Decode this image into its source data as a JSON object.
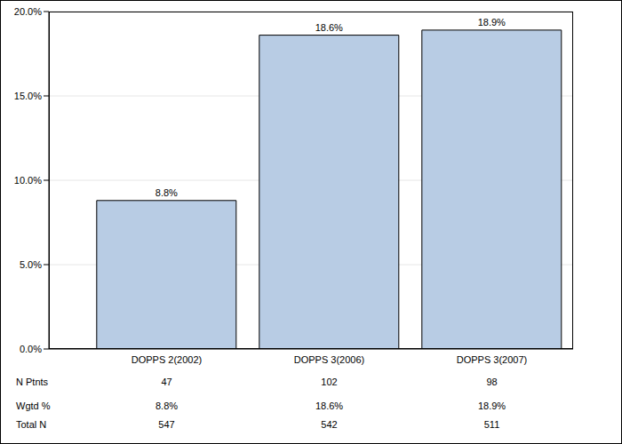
{
  "chart_data": {
    "type": "bar",
    "categories": [
      "DOPPS 2(2002)",
      "DOPPS 3(2006)",
      "DOPPS 3(2007)"
    ],
    "values": [
      8.8,
      18.6,
      18.9
    ],
    "value_labels": [
      "8.8%",
      "18.6%",
      "18.9%"
    ],
    "data_labels": true,
    "color": "#b8cce4",
    "ylim": [
      0,
      20
    ],
    "yticks": [
      {
        "value": 0,
        "label": "0.0%"
      },
      {
        "value": 5,
        "label": "5.0%"
      },
      {
        "value": 10,
        "label": "10.0%"
      },
      {
        "value": 15,
        "label": "15.0%"
      },
      {
        "value": 20,
        "label": "20.0%"
      }
    ],
    "grid": true,
    "table": {
      "rows": [
        {
          "label": "N Ptnts",
          "values": [
            "47",
            "102",
            "98"
          ]
        },
        {
          "label": "Wgtd %",
          "values": [
            "8.8%",
            "18.6%",
            "18.9%"
          ]
        },
        {
          "label": "Total N",
          "values": [
            "547",
            "542",
            "511"
          ]
        }
      ]
    }
  }
}
